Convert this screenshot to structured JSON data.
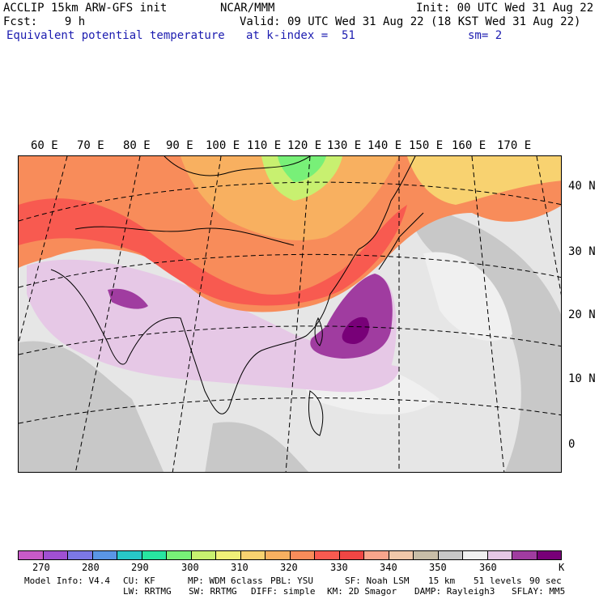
{
  "header": {
    "line1_left": "ACCLIP 15km ARW-GFS init",
    "line1_center": "NCAR/MMM",
    "line1_right": "Init: 00 UTC Wed 31 Aug 22",
    "line2_left": "Fcst:    9 h",
    "line2_right": "Valid: 09 UTC Wed 31 Aug 22 (18 KST Wed 31 Aug 22)",
    "line3_field": "Equivalent potential temperature",
    "line3_level": "at k-index =  51",
    "line3_smooth": "sm= 2"
  },
  "map": {
    "longitude_labels": [
      "60 E",
      "70 E",
      "80 E",
      "90 E",
      "100 E",
      "110 E",
      "120 E",
      "130 E",
      "140 E",
      "150 E",
      "160 E",
      "170 E"
    ],
    "latitude_labels": [
      "40 N",
      "30 N",
      "20 N",
      "10 N",
      "0"
    ]
  },
  "colorbar": {
    "colors": [
      "#c85ac8",
      "#a050d2",
      "#7c78e6",
      "#5a96e6",
      "#28c8c8",
      "#28e6a0",
      "#78f078",
      "#c8f070",
      "#f0f078",
      "#f8d270",
      "#f8b060",
      "#f88c5a",
      "#f85a50",
      "#f04644",
      "#f8a58c",
      "#f0c8aa",
      "#c8bea8",
      "#c8c8c8",
      "#f0f0f0",
      "#e6c8e6",
      "#a03ca0",
      "#780078"
    ],
    "tick_labels": [
      "270",
      "280",
      "290",
      "300",
      "310",
      "320",
      "330",
      "340",
      "350",
      "360"
    ],
    "units": "K"
  },
  "footer": {
    "line1": [
      "Model Info: V4.4",
      "CU: KF",
      "MP: WDM 6class",
      "PBL: YSU",
      "SF: Noah LSM",
      "15 km",
      "51 levels",
      "90 sec"
    ],
    "line2": [
      "LW: RRTMG",
      "SW: RRTMG",
      "DIFF: simple",
      "KM: 2D Smagor",
      "DAMP: Rayleigh3",
      "SFLAY: MM5"
    ]
  }
}
